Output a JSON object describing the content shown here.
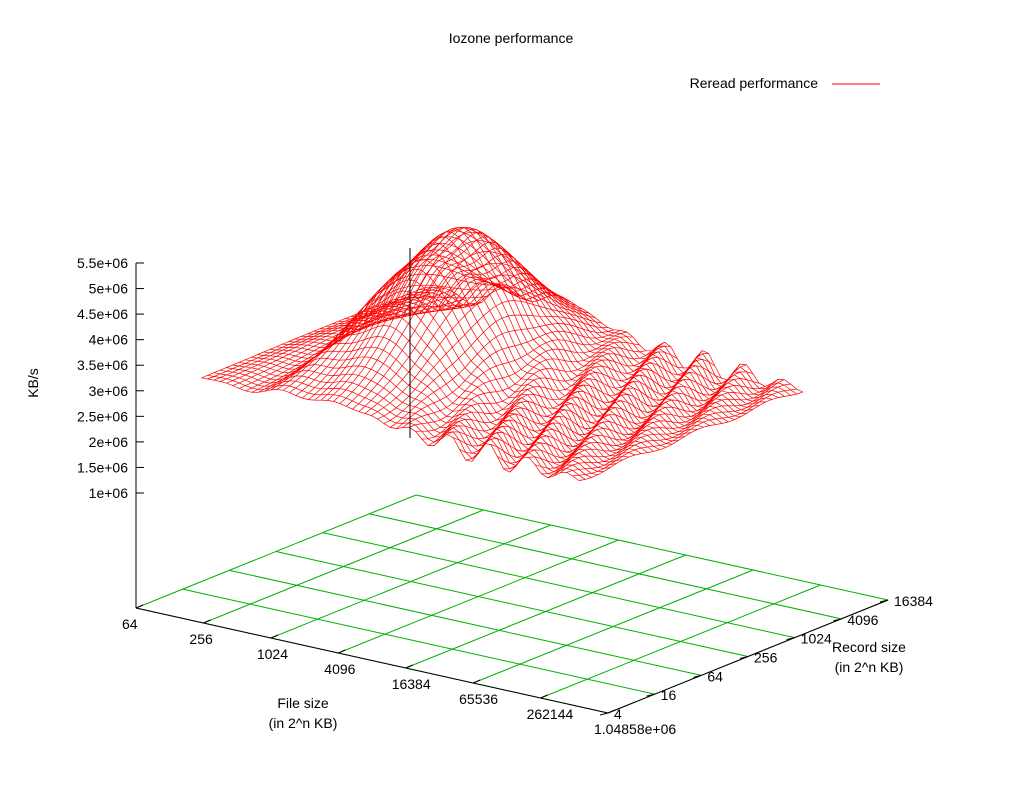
{
  "chart_data": {
    "type": "surface",
    "title": "Iozone performance",
    "legend": {
      "label": "Reread performance",
      "color": "#ff0000",
      "position": "top-right"
    },
    "zlabel": "KB/s",
    "xlabel": "File size\n(in 2^n KB)",
    "ylabel": "Record size\n(in 2^n KB)",
    "x_ticks": [
      "64",
      "256",
      "1024",
      "4096",
      "16384",
      "65536",
      "262144",
      "1.04858e+06"
    ],
    "y_ticks": [
      "4",
      "16",
      "64",
      "256",
      "1024",
      "4096",
      "16384"
    ],
    "z_ticks": [
      "1e+06",
      "1.5e+06",
      "2e+06",
      "2.5e+06",
      "3e+06",
      "3.5e+06",
      "4e+06",
      "4.5e+06",
      "5e+06",
      "5.5e+06"
    ],
    "zlim": [
      1000000,
      5500000
    ],
    "grid_color": "#00b000",
    "surface_color": "#ff0000",
    "x_log2_range": [
      6,
      20
    ],
    "y_log2_range": [
      2,
      14
    ],
    "surface_note_values": {
      "small_file_region_KBps": 3200000,
      "peak_region_KBps": 5800000,
      "large_file_region_KBps": 2500000
    }
  }
}
